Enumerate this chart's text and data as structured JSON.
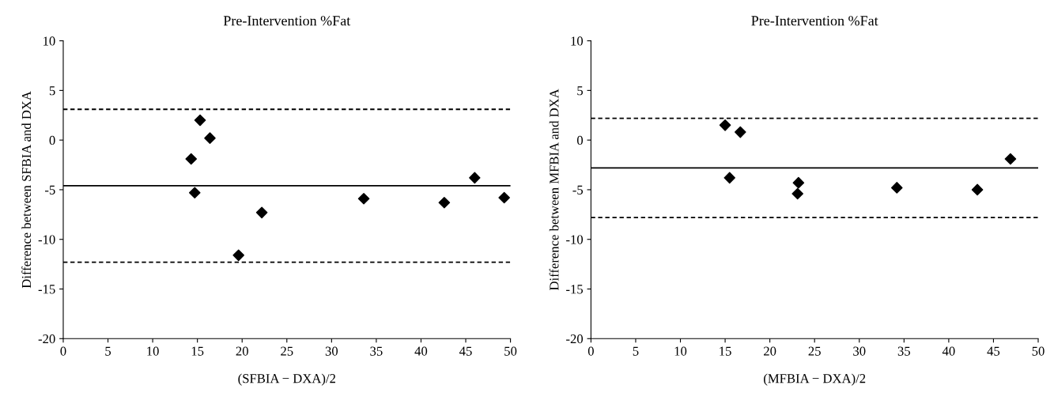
{
  "chart_data": [
    {
      "type": "scatter",
      "title": "Pre-Intervention %Fat",
      "xlabel": "(SFBIA − DXA)/2",
      "ylabel": "Difference between SFBIA and DXA",
      "x": [
        14.3,
        14.7,
        15.3,
        16.4,
        19.6,
        22.2,
        33.6,
        42.6,
        46.0,
        49.3
      ],
      "series": [
        {
          "color": "#000000",
          "values": [
            -1.9,
            -5.3,
            2.0,
            0.2,
            -11.6,
            -7.3,
            -5.9,
            -6.3,
            -3.8,
            -5.8
          ]
        }
      ],
      "marker": "diamond",
      "grid": false,
      "legend": false,
      "xlim": [
        0,
        50
      ],
      "xticks": [
        0,
        5,
        10,
        15,
        20,
        25,
        30,
        35,
        40,
        45,
        50
      ],
      "ylim": [
        -20,
        10
      ],
      "yticks": [
        -20,
        -15,
        -10,
        -5,
        0,
        5,
        10
      ],
      "ref_lines": [
        {
          "axis": "y",
          "value": 3.1,
          "color": "#000000",
          "line_style": "dashed"
        },
        {
          "axis": "y",
          "value": -4.6,
          "color": "#000000",
          "line_style": "solid"
        },
        {
          "axis": "y",
          "value": -12.3,
          "color": "#000000",
          "line_style": "dashed"
        }
      ]
    },
    {
      "type": "scatter",
      "title": "Pre-Intervention %Fat",
      "xlabel": "(MFBIA − DXA)/2",
      "ylabel": "Difference between MFBIA and DXA",
      "x": [
        15.0,
        16.7,
        15.5,
        23.2,
        23.1,
        34.2,
        43.2,
        46.9
      ],
      "series": [
        {
          "color": "#000000",
          "values": [
            1.5,
            0.8,
            -3.8,
            -4.3,
            -5.4,
            -4.8,
            -5.0,
            -1.9
          ]
        }
      ],
      "marker": "diamond",
      "grid": false,
      "legend": false,
      "xlim": [
        0,
        50
      ],
      "xticks": [
        0,
        5,
        10,
        15,
        20,
        25,
        30,
        35,
        40,
        45,
        50
      ],
      "ylim": [
        -20,
        10
      ],
      "yticks": [
        -20,
        -15,
        -10,
        -5,
        0,
        5,
        10
      ],
      "ref_lines": [
        {
          "axis": "y",
          "value": 2.2,
          "color": "#000000",
          "line_style": "dashed"
        },
        {
          "axis": "y",
          "value": -2.8,
          "color": "#000000",
          "line_style": "solid"
        },
        {
          "axis": "y",
          "value": -7.8,
          "color": "#000000",
          "line_style": "dashed"
        }
      ]
    }
  ]
}
